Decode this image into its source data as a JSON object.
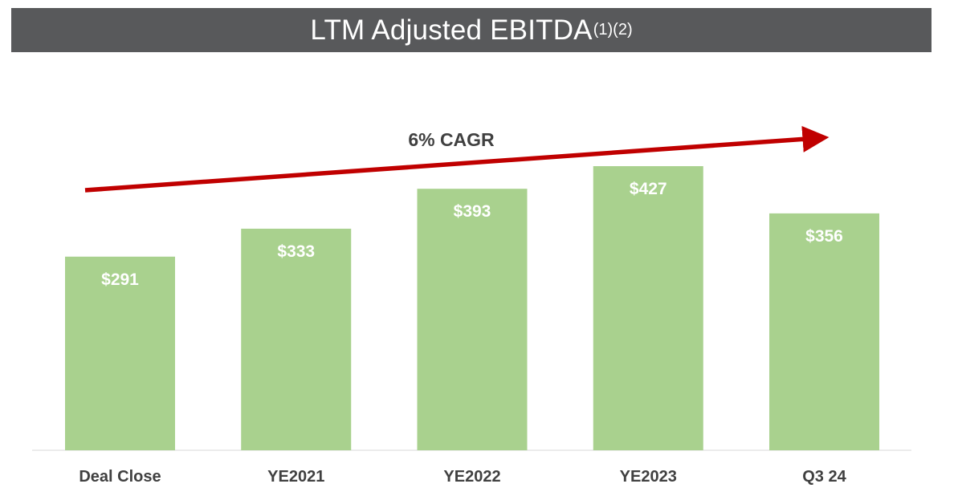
{
  "title": {
    "main": "LTM Adjusted EBITDA",
    "superscript": "(1)(2)"
  },
  "annotation": {
    "cagr_label": "6% CAGR"
  },
  "colors": {
    "banner": "#58595b",
    "bar": "#a9d18e",
    "arrow": "#c00000",
    "axis_text": "#404040",
    "value_text": "#ffffff"
  },
  "chart_data": {
    "type": "bar",
    "categories": [
      "Deal Close",
      "YE2021",
      "YE2022",
      "YE2023",
      "Q3 24"
    ],
    "values": [
      291,
      333,
      393,
      427,
      356
    ],
    "value_labels": [
      "$291",
      "$333",
      "$393",
      "$427",
      "$356"
    ],
    "title": "LTM Adjusted EBITDA(1)(2)",
    "xlabel": "",
    "ylabel": "",
    "ylim": [
      0,
      430
    ],
    "grid": false,
    "legend": "none",
    "annotations": [
      "6% CAGR"
    ]
  }
}
